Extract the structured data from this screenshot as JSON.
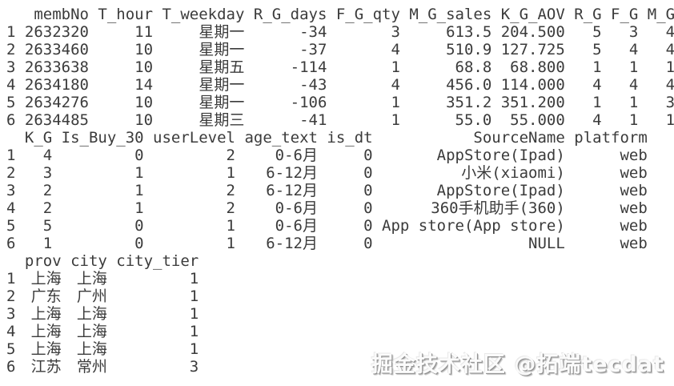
{
  "page": {
    "type": "r-console-dataframe-print",
    "background_color": "#ffffff",
    "text_color": "#3b3b3b",
    "watermark_color": "#9a9a9a"
  },
  "console": {
    "blocks": [
      {
        "name": "rfm-metrics",
        "headers": [
          "",
          "membNo",
          "T_hour",
          "T_weekday",
          "R_G_days",
          "F_G_qty",
          "M_G_sales",
          "K_G_AOV",
          "R_G",
          "F_G",
          "M_G"
        ],
        "rows": [
          [
            "1",
            "2632320",
            "11",
            "星期一",
            "-34",
            "3",
            "613.5",
            "204.500",
            "5",
            "3",
            "4"
          ],
          [
            "2",
            "2633460",
            "10",
            "星期一",
            "-37",
            "4",
            "510.9",
            "127.725",
            "5",
            "4",
            "4"
          ],
          [
            "3",
            "2633638",
            "10",
            "星期五",
            "-114",
            "1",
            "68.8",
            "68.800",
            "1",
            "1",
            "1"
          ],
          [
            "4",
            "2634180",
            "14",
            "星期一",
            "-43",
            "4",
            "456.0",
            "114.000",
            "4",
            "4",
            "4"
          ],
          [
            "5",
            "2634276",
            "10",
            "星期一",
            "-106",
            "1",
            "351.2",
            "351.200",
            "1",
            "1",
            "3"
          ],
          [
            "6",
            "2634485",
            "10",
            "星期三",
            "-41",
            "1",
            "55.0",
            "55.000",
            "4",
            "1",
            "1"
          ]
        ]
      },
      {
        "name": "user-attributes",
        "headers": [
          "",
          "K_G",
          "Is_Buy_30",
          "userLevel",
          "age_text",
          "is_dt",
          "SourceName",
          "platform"
        ],
        "rows": [
          [
            "1",
            "4",
            "0",
            "2",
            "0-6月",
            "0",
            "AppStore(Ipad)",
            "web"
          ],
          [
            "2",
            "3",
            "1",
            "1",
            "6-12月",
            "0",
            "小米(xiaomi)",
            "web"
          ],
          [
            "3",
            "2",
            "1",
            "2",
            "6-12月",
            "0",
            "AppStore(Ipad)",
            "web"
          ],
          [
            "4",
            "2",
            "1",
            "2",
            "0-6月",
            "0",
            "360手机助手(360)",
            "web"
          ],
          [
            "5",
            "5",
            "0",
            "1",
            "0-6月",
            "0",
            "App store(App store)",
            "web"
          ],
          [
            "6",
            "1",
            "0",
            "1",
            "6-12月",
            "0",
            "NULL",
            "web"
          ]
        ]
      },
      {
        "name": "location",
        "headers": [
          "",
          "prov",
          "city",
          "city_tier"
        ],
        "rows": [
          [
            "1",
            "上海",
            "上海",
            "1"
          ],
          [
            "2",
            "广东",
            "广州",
            "1"
          ],
          [
            "3",
            "上海",
            "上海",
            "1"
          ],
          [
            "4",
            "上海",
            "上海",
            "1"
          ],
          [
            "5",
            "上海",
            "上海",
            "1"
          ],
          [
            "6",
            "江苏",
            "常州",
            "3"
          ]
        ]
      }
    ]
  },
  "watermark": {
    "text": "掘金技术社区 @拓端tecdat"
  }
}
